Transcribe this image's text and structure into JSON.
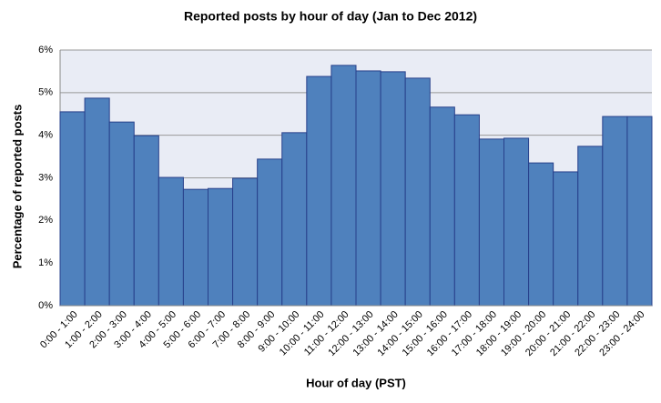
{
  "chart_data": {
    "type": "bar",
    "title": "Reported posts by hour of day (Jan to Dec 2012)",
    "x_label": "Hour of day (PST)",
    "y_label": "Percentage of reported posts",
    "categories": [
      "0:00 - 1:00",
      "1:00 - 2:00",
      "2:00 - 3:00",
      "3:00 - 4:00",
      "4:00 - 5:00",
      "5:00 - 6:00",
      "6:00 - 7:00",
      "7:00 - 8:00",
      "8:00 - 9:00",
      "9:00 - 10:00",
      "10:00 - 11:00",
      "11:00 - 12:00",
      "12:00 - 13:00",
      "13:00 - 14:00",
      "14:00 - 15:00",
      "15:00 - 16:00",
      "16:00 - 17:00",
      "17:00 - 18:00",
      "18:00 - 19:00",
      "19:00 - 20:00",
      "20:00 - 21:00",
      "21:00 - 22:00",
      "22:00 - 23:00",
      "23:00 - 24:00"
    ],
    "values": [
      4.55,
      4.87,
      4.31,
      3.99,
      3.01,
      2.73,
      2.75,
      2.99,
      3.44,
      4.06,
      5.38,
      5.64,
      5.51,
      5.49,
      5.34,
      4.66,
      4.48,
      3.91,
      3.93,
      3.35,
      3.14,
      3.74,
      4.44,
      4.44
    ],
    "color": "#4f81bd",
    "ylim": [
      0,
      6
    ],
    "yticks": [
      {
        "value": 0,
        "label": "0%"
      },
      {
        "value": 1,
        "label": "1%"
      },
      {
        "value": 2,
        "label": "2%"
      },
      {
        "value": 3,
        "label": "3%"
      },
      {
        "value": 4,
        "label": "4%"
      },
      {
        "value": 5,
        "label": "5%"
      },
      {
        "value": 6,
        "label": "6%"
      }
    ],
    "grid": true
  }
}
